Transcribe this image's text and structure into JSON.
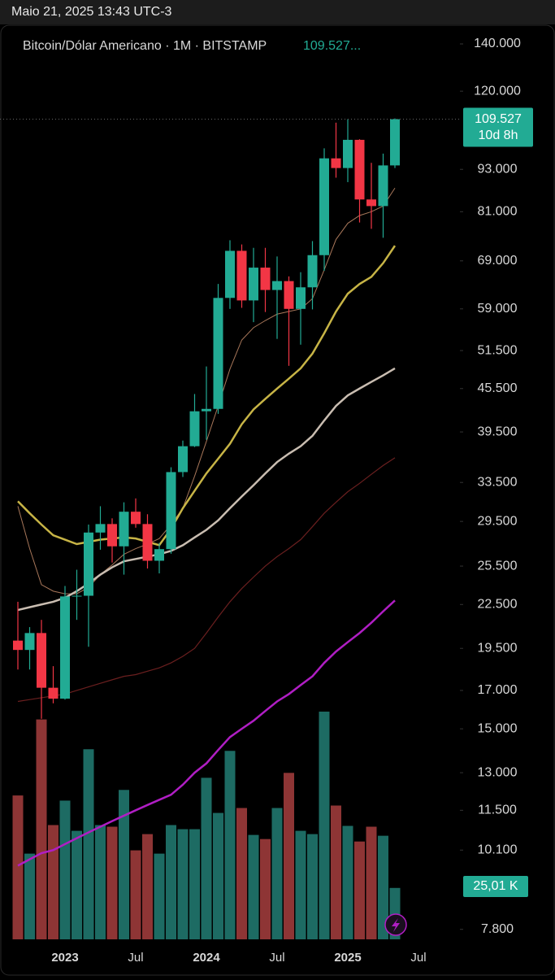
{
  "status_bar": {
    "time": "Maio 21, 2025 13:43 UTC-3"
  },
  "chart_data": {
    "type": "candlestick",
    "title": "Bitcoin/Dólar Americano · 1M · BITSTAMP",
    "header_price": "109.527...",
    "countdown": "10d 8h",
    "categories": [
      null,
      null,
      null,
      null,
      "2023",
      null,
      null,
      null,
      null,
      null,
      "Jul",
      null,
      null,
      null,
      null,
      null,
      "2024",
      null,
      null,
      null,
      null,
      null,
      "Jul",
      null,
      null,
      null,
      null,
      null,
      "2025",
      null,
      null,
      null,
      null,
      null,
      "Jul"
    ],
    "up_color": "#22ab94",
    "down_color": "#f23645",
    "open": [
      20000,
      19400,
      20500,
      17150,
      16550,
      23100,
      23150,
      28450,
      29250,
      27200,
      30450,
      29250,
      25950,
      26950,
      34650,
      37700,
      42250,
      42580,
      61150,
      71300,
      60650,
      67500,
      62750,
      64600,
      59000,
      63300,
      70300,
      96400,
      93400,
      102400,
      84300,
      82500,
      94200,
      null,
      null
    ],
    "high": [
      22700,
      20900,
      21400,
      18400,
      23900,
      25200,
      29200,
      31000,
      29800,
      31400,
      31800,
      30200,
      27500,
      35200,
      38400,
      44700,
      48900,
      64000,
      73800,
      72800,
      72000,
      72000,
      70000,
      65600,
      66500,
      73600,
      99600,
      108300,
      109500,
      102600,
      95000,
      97900,
      109800,
      null,
      null
    ],
    "low": [
      18200,
      18200,
      15500,
      16300,
      16500,
      21400,
      19600,
      26900,
      25800,
      24800,
      28900,
      25300,
      24900,
      26550,
      34100,
      37600,
      38500,
      41900,
      59000,
      59200,
      56500,
      58400,
      53500,
      49000,
      52500,
      58900,
      66800,
      90500,
      89200,
      78200,
      76600,
      74400,
      93400,
      null,
      null
    ],
    "close": [
      19400,
      20500,
      17150,
      16550,
      23100,
      23150,
      28450,
      29250,
      27200,
      30450,
      29250,
      25950,
      26950,
      34650,
      37700,
      42250,
      42580,
      61150,
      71300,
      60650,
      67500,
      62750,
      64600,
      59000,
      63300,
      70300,
      96400,
      93400,
      102400,
      84300,
      82500,
      94200,
      109527,
      null,
      null
    ],
    "close_value_labels": [
      null,
      null,
      null,
      null,
      null,
      null,
      null,
      null,
      null,
      null,
      null,
      null,
      null,
      null,
      null,
      null,
      null,
      null,
      null,
      null,
      null,
      null,
      null,
      null,
      null,
      null,
      null,
      null,
      null,
      null,
      null,
      null,
      "109.527",
      null,
      null
    ],
    "volume": {
      "up_color": "#1d6b63",
      "down_color": "#8e3535",
      "values": [
        70000,
        41700,
        107000,
        55600,
        67500,
        52800,
        92500,
        55600,
        54800,
        72700,
        43300,
        51200,
        41700,
        55600,
        53600,
        53600,
        78600,
        61500,
        91700,
        63900,
        50800,
        48800,
        63900,
        81000,
        52800,
        51200,
        110800,
        65100,
        55200,
        47600,
        54800,
        50400,
        25010,
        null,
        null
      ],
      "value_labels": [
        null,
        null,
        null,
        null,
        null,
        null,
        null,
        null,
        null,
        null,
        null,
        null,
        null,
        null,
        null,
        null,
        null,
        null,
        null,
        null,
        null,
        null,
        null,
        null,
        null,
        null,
        null,
        null,
        null,
        null,
        null,
        null,
        "25,01 K",
        null,
        null
      ]
    },
    "moving_averages": [
      {
        "color": "#a8775a",
        "width": 1,
        "values": [
          31000,
          27000,
          24000,
          23500,
          23300,
          23300,
          23800,
          24800,
          25600,
          26500,
          27000,
          27400,
          27900,
          29200,
          30800,
          34200,
          38300,
          43000,
          48500,
          53300,
          55500,
          56800,
          58000,
          58500,
          59000,
          61000,
          67000,
          74000,
          78000,
          80000,
          81000,
          82500,
          87500,
          null,
          null
        ]
      },
      {
        "color": "#c7b446",
        "width": 2.5,
        "values": [
          31500,
          30300,
          29200,
          28200,
          27800,
          27400,
          27600,
          27800,
          27900,
          28000,
          27900,
          27600,
          27300,
          28800,
          30800,
          32600,
          34500,
          36200,
          38000,
          40500,
          42500,
          44000,
          45500,
          47000,
          48600,
          51000,
          54500,
          58500,
          62000,
          64000,
          65500,
          68500,
          72500,
          null,
          null
        ]
      },
      {
        "color": "#c9bdb1",
        "width": 2.5,
        "values": [
          22100,
          22300,
          22500,
          22700,
          23000,
          23500,
          24100,
          24800,
          25400,
          25900,
          26100,
          26300,
          26500,
          26800,
          27300,
          28000,
          28700,
          29600,
          30800,
          32000,
          33200,
          34500,
          35800,
          36800,
          37700,
          39000,
          41000,
          43000,
          44500,
          45500,
          46500,
          47500,
          48600,
          null,
          null
        ]
      },
      {
        "color": "#6b1f1f",
        "width": 1.2,
        "values": [
          16400,
          16500,
          16600,
          16700,
          16800,
          17000,
          17200,
          17400,
          17600,
          17800,
          17900,
          18100,
          18300,
          18600,
          19000,
          19500,
          20500,
          21600,
          22700,
          23700,
          24600,
          25500,
          26300,
          27000,
          27800,
          29000,
          30300,
          31400,
          32500,
          33400,
          34400,
          35400,
          36300,
          null,
          null
        ]
      },
      {
        "color": "#b01ec4",
        "width": 2.5,
        "values": [
          9600,
          9800,
          10000,
          10100,
          10300,
          10500,
          10700,
          10900,
          11100,
          11300,
          11500,
          11700,
          11900,
          12100,
          12500,
          13000,
          13400,
          14000,
          14600,
          15000,
          15400,
          15900,
          16400,
          16800,
          17300,
          17800,
          18600,
          19300,
          19900,
          20500,
          21200,
          22000,
          22800,
          null,
          null
        ]
      }
    ],
    "log_scale": true,
    "ylim": [
      7450,
      145300
    ],
    "yticks": [
      {
        "value": 140000,
        "label": "140.000"
      },
      {
        "value": 120000,
        "label": "120.000"
      },
      {
        "value": 93000,
        "label": "93.000"
      },
      {
        "value": 81000,
        "label": "81.000"
      },
      {
        "value": 69000,
        "label": "69.000"
      },
      {
        "value": 59000,
        "label": "59.000"
      },
      {
        "value": 51500,
        "label": "51.500"
      },
      {
        "value": 45500,
        "label": "45.500"
      },
      {
        "value": 39500,
        "label": "39.500"
      },
      {
        "value": 33500,
        "label": "33.500"
      },
      {
        "value": 29500,
        "label": "29.500"
      },
      {
        "value": 25500,
        "label": "25.500"
      },
      {
        "value": 22500,
        "label": "22.500"
      },
      {
        "value": 19500,
        "label": "19.500"
      },
      {
        "value": 17000,
        "label": "17.000"
      },
      {
        "value": 15000,
        "label": "15.000"
      },
      {
        "value": 13000,
        "label": "13.000"
      },
      {
        "value": 11500,
        "label": "11.500"
      },
      {
        "value": 10100,
        "label": "10.100"
      },
      {
        "value": 7800,
        "label": "7.800"
      }
    ]
  }
}
